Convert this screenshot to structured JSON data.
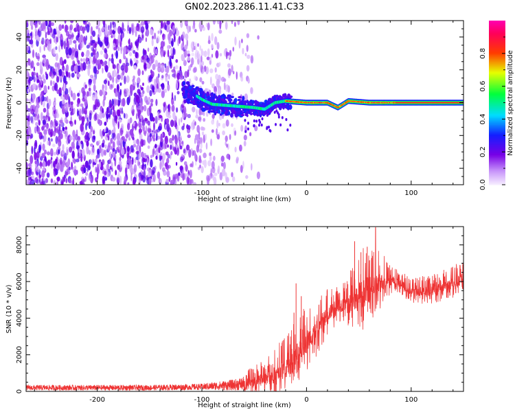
{
  "figure": {
    "title": "GN02.2023.286.11.41.C33"
  },
  "chart_data": [
    {
      "type": "heatmap",
      "xlabel": "Height of straight line (km)",
      "ylabel": "Frequency (Hz)",
      "xlim": [
        -268,
        150
      ],
      "ylim": [
        -50,
        50
      ],
      "xticks": [
        -200,
        -100,
        0,
        100
      ],
      "yticks": [
        -40,
        -20,
        0,
        20,
        40
      ],
      "colorbar": {
        "label": "Normalized spectral amplitude",
        "range": [
          0,
          1
        ],
        "ticks": [
          0.0,
          0.2,
          0.4,
          0.6,
          0.8
        ],
        "colormap": "hsv-rainbow"
      },
      "ridge": {
        "description_points": [
          {
            "x": -110,
            "y": 6
          },
          {
            "x": -100,
            "y": 2
          },
          {
            "x": -90,
            "y": -1
          },
          {
            "x": -70,
            "y": -2
          },
          {
            "x": -50,
            "y": -3
          },
          {
            "x": -40,
            "y": -4
          },
          {
            "x": -30,
            "y": 0
          },
          {
            "x": -20,
            "y": 1
          },
          {
            "x": 0,
            "y": 0
          },
          {
            "x": 20,
            "y": 0
          },
          {
            "x": 30,
            "y": -3
          },
          {
            "x": 40,
            "y": 1
          },
          {
            "x": 60,
            "y": 0
          },
          {
            "x": 80,
            "y": 0
          },
          {
            "x": 150,
            "y": 0
          }
        ],
        "strong_band_x": [
          -20,
          150
        ],
        "noise_region_x": [
          -268,
          -60
        ]
      }
    },
    {
      "type": "line",
      "xlabel": "Height of straight line (km)",
      "ylabel": "SNR (10 * v/v)",
      "xlim": [
        -268,
        150
      ],
      "ylim": [
        0,
        9000
      ],
      "xticks": [
        -200,
        -100,
        0,
        100
      ],
      "yticks": [
        0,
        2000,
        4000,
        6000,
        8000
      ],
      "series": [
        {
          "color": "#ee3333",
          "envelope": [
            {
              "x": -268,
              "base": 200,
              "spread": 300
            },
            {
              "x": -150,
              "base": 200,
              "spread": 300
            },
            {
              "x": -100,
              "base": 250,
              "spread": 350
            },
            {
              "x": -70,
              "base": 350,
              "spread": 600
            },
            {
              "x": -50,
              "base": 500,
              "spread": 900
            },
            {
              "x": -30,
              "base": 900,
              "spread": 1500
            },
            {
              "x": -15,
              "base": 1400,
              "spread": 2000
            },
            {
              "x": -5,
              "base": 2400,
              "spread": 2200
            },
            {
              "x": 10,
              "base": 3400,
              "spread": 1800
            },
            {
              "x": 20,
              "base": 4200,
              "spread": 1400
            },
            {
              "x": 30,
              "base": 4700,
              "spread": 1200
            },
            {
              "x": 40,
              "base": 4800,
              "spread": 1600
            },
            {
              "x": 50,
              "base": 5200,
              "spread": 2600
            },
            {
              "x": 60,
              "base": 5600,
              "spread": 2400
            },
            {
              "x": 70,
              "base": 5900,
              "spread": 1800
            },
            {
              "x": 80,
              "base": 6100,
              "spread": 1000
            },
            {
              "x": 90,
              "base": 5900,
              "spread": 700
            },
            {
              "x": 100,
              "base": 5400,
              "spread": 800
            },
            {
              "x": 120,
              "base": 5500,
              "spread": 900
            },
            {
              "x": 140,
              "base": 5900,
              "spread": 1000
            },
            {
              "x": 150,
              "base": 6200,
              "spread": 900
            }
          ],
          "peak_x": 66,
          "peak_y": 8950
        }
      ]
    }
  ]
}
